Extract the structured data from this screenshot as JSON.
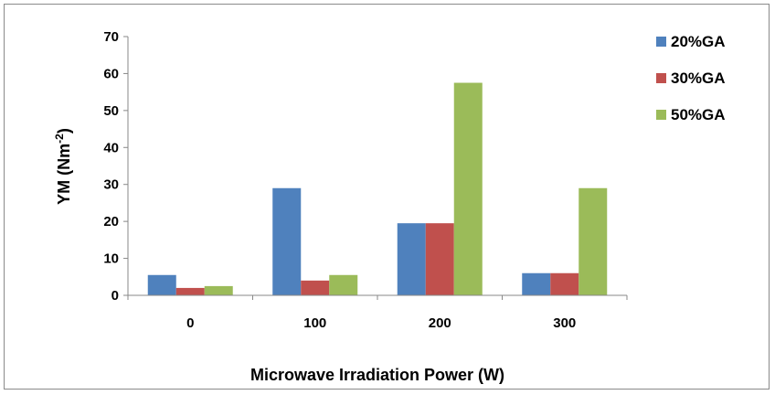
{
  "chart_data": {
    "type": "bar",
    "categories": [
      "0",
      "100",
      "200",
      "300"
    ],
    "series": [
      {
        "name": "20%GA",
        "color": "#4f81bd",
        "values": [
          5.5,
          29,
          19.5,
          6
        ]
      },
      {
        "name": "30%GA",
        "color": "#c0504d",
        "values": [
          2,
          4,
          19.5,
          6
        ]
      },
      {
        "name": "50%GA",
        "color": "#9bbb59",
        "values": [
          2.5,
          5.5,
          57.5,
          29
        ]
      }
    ],
    "ylim": [
      0,
      70
    ],
    "yticks": [
      "0",
      "10",
      "20",
      "30",
      "40",
      "50",
      "60",
      "70"
    ],
    "ylabel_main": "YM (Nm",
    "ylabel_sup": "-2",
    "ylabel_tail": ")",
    "xlabel": "Microwave Irradiation Power (W)",
    "grid": false,
    "legend_position": "right"
  }
}
